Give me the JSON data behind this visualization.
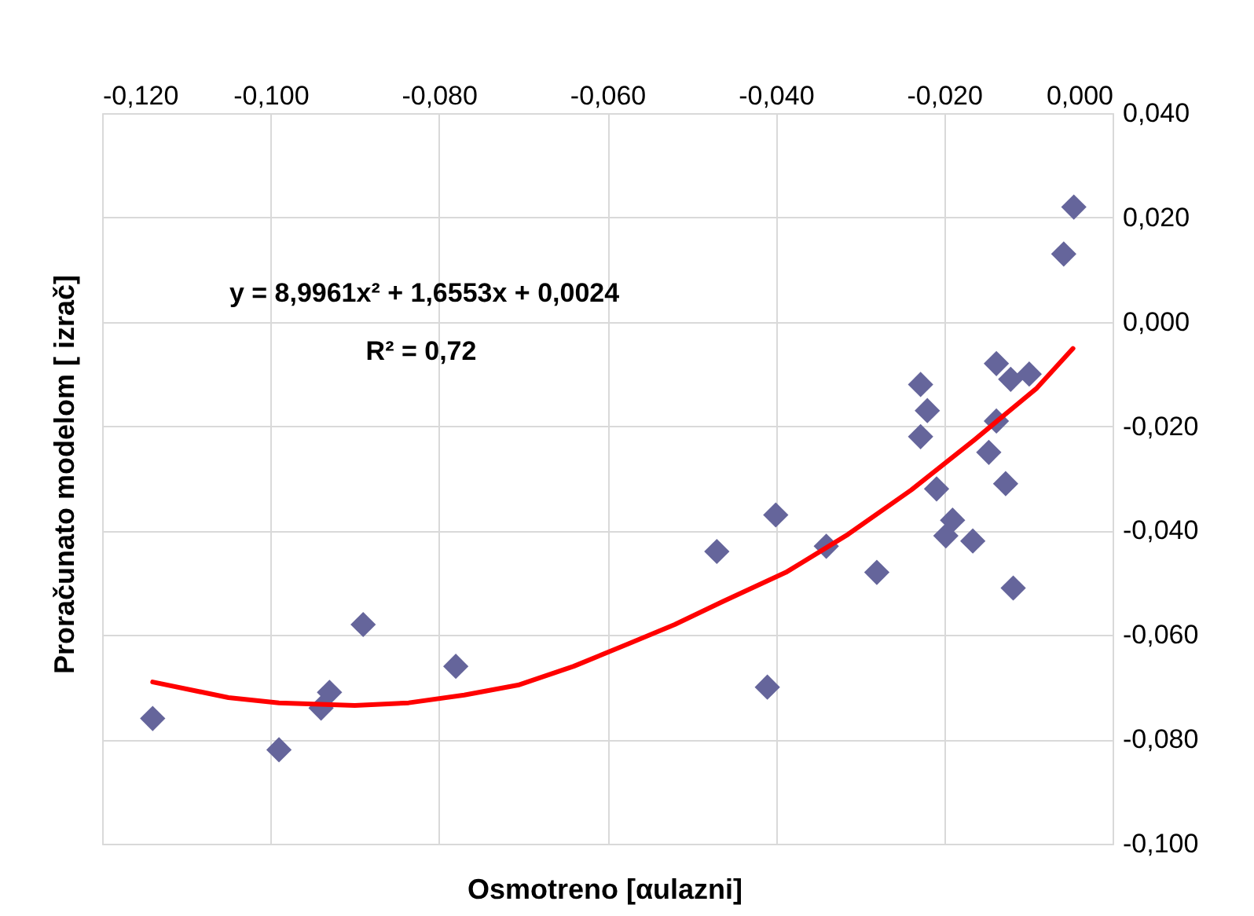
{
  "chart_data": {
    "type": "scatter",
    "xlabel": "Osmotreno [αulazni]",
    "ylabel": "Proračunato modelom [ izrač]",
    "annotations": [
      "y = 8,9961x² + 1,6553x + 0,0024",
      "R² = 0,72"
    ],
    "xlim": [
      -0.12,
      0.0
    ],
    "ylim": [
      -0.1,
      0.04
    ],
    "xticks": [
      {
        "value": -0.12,
        "label": "-0,120"
      },
      {
        "value": -0.1,
        "label": "-0,100"
      },
      {
        "value": -0.08,
        "label": "-0,080"
      },
      {
        "value": -0.06,
        "label": "-0,060"
      },
      {
        "value": -0.04,
        "label": "-0,040"
      },
      {
        "value": -0.02,
        "label": "-0,020"
      },
      {
        "value": 0.0,
        "label": "0,000"
      }
    ],
    "yticks": [
      {
        "value": -0.1,
        "label": "-0,100"
      },
      {
        "value": -0.08,
        "label": "-0,080"
      },
      {
        "value": -0.06,
        "label": "-0,060"
      },
      {
        "value": -0.04,
        "label": "-0,040"
      },
      {
        "value": -0.02,
        "label": "-0,020"
      },
      {
        "value": 0.0,
        "label": "0,000"
      },
      {
        "value": 0.02,
        "label": "0,020"
      },
      {
        "value": 0.04,
        "label": "0,040"
      }
    ],
    "grid": true,
    "series": [
      {
        "marker": "diamond",
        "color": "#65659b",
        "x": [
          -0.114,
          -0.099,
          -0.094,
          -0.093,
          -0.089,
          -0.078,
          -0.047,
          -0.041,
          -0.04,
          -0.034,
          -0.028,
          -0.0046,
          -0.0058,
          -0.0228,
          -0.022,
          -0.0228,
          -0.0209,
          -0.019,
          -0.0198,
          -0.0166,
          -0.0138,
          -0.0121,
          -0.0099,
          -0.0138,
          -0.0147,
          -0.0127,
          -0.0118
        ],
        "values": [
          -0.076,
          -0.082,
          -0.074,
          -0.071,
          -0.058,
          -0.066,
          -0.044,
          -0.07,
          -0.037,
          -0.043,
          -0.048,
          0.022,
          0.013,
          -0.012,
          -0.017,
          -0.022,
          -0.032,
          -0.038,
          -0.041,
          -0.042,
          -0.008,
          -0.011,
          -0.01,
          -0.019,
          -0.025,
          -0.031,
          -0.051
        ]
      },
      {
        "type": "line",
        "marker": "none",
        "line_style": "solid",
        "color": "#ff0000",
        "x": [
          -0.114,
          -0.105,
          -0.099,
          -0.09,
          -0.0836,
          -0.077,
          -0.0706,
          -0.064,
          -0.0575,
          -0.052,
          -0.0463,
          -0.0388,
          -0.0314,
          -0.0239,
          -0.0164,
          -0.009,
          -0.0047
        ],
        "values": [
          -0.069,
          -0.072,
          -0.073,
          -0.0735,
          -0.073,
          -0.0715,
          -0.0696,
          -0.066,
          -0.0617,
          -0.058,
          -0.0536,
          -0.048,
          -0.0407,
          -0.0322,
          -0.0226,
          -0.0127,
          -0.0051
        ]
      }
    ]
  }
}
